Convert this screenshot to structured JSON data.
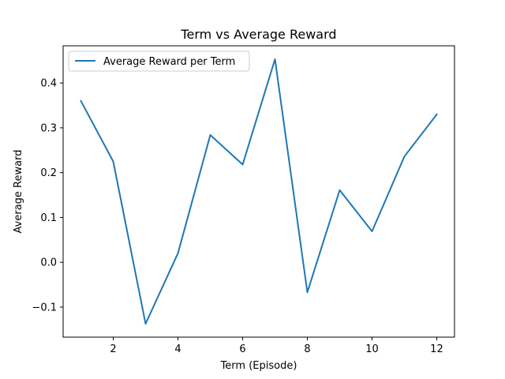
{
  "chart_data": {
    "type": "line",
    "title": "Term vs Average Reward",
    "xlabel": "Term (Episode)",
    "ylabel": "Average Reward",
    "xlim": [
      0.45,
      12.55
    ],
    "ylim": [
      -0.167,
      0.483
    ],
    "xticks": [
      2,
      4,
      6,
      8,
      10,
      12
    ],
    "xtick_labels": [
      "2",
      "4",
      "6",
      "8",
      "10",
      "12"
    ],
    "yticks": [
      -0.1,
      0.0,
      0.1,
      0.2,
      0.3,
      0.4
    ],
    "ytick_labels": [
      "−0.1",
      "0.0",
      "0.1",
      "0.2",
      "0.3",
      "0.4"
    ],
    "grid": false,
    "legend_position": "upper-left",
    "series": [
      {
        "name": "Average Reward per Term",
        "color": "#1f77b4",
        "x": [
          1,
          2,
          3,
          4,
          5,
          6,
          7,
          8,
          9,
          10,
          11,
          12
        ],
        "y": [
          0.36,
          0.225,
          -0.137,
          0.02,
          0.284,
          0.218,
          0.453,
          -0.067,
          0.161,
          0.069,
          0.236,
          0.33
        ]
      }
    ]
  }
}
